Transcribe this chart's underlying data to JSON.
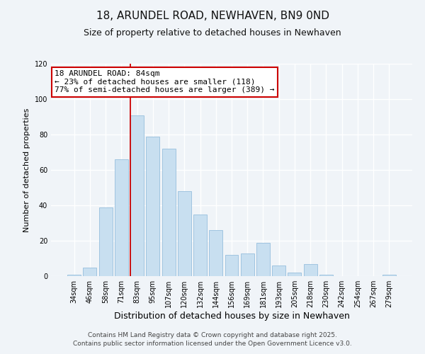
{
  "title": "18, ARUNDEL ROAD, NEWHAVEN, BN9 0ND",
  "subtitle": "Size of property relative to detached houses in Newhaven",
  "xlabel": "Distribution of detached houses by size in Newhaven",
  "ylabel": "Number of detached properties",
  "bar_color": "#c8dff0",
  "bar_edge_color": "#a0c4e0",
  "background_color": "#f0f4f8",
  "grid_color": "#ffffff",
  "categories": [
    "34sqm",
    "46sqm",
    "58sqm",
    "71sqm",
    "83sqm",
    "95sqm",
    "107sqm",
    "120sqm",
    "132sqm",
    "144sqm",
    "156sqm",
    "169sqm",
    "181sqm",
    "193sqm",
    "205sqm",
    "218sqm",
    "230sqm",
    "242sqm",
    "254sqm",
    "267sqm",
    "279sqm"
  ],
  "values": [
    1,
    5,
    39,
    66,
    91,
    79,
    72,
    48,
    35,
    26,
    12,
    13,
    19,
    6,
    2,
    7,
    1,
    0,
    0,
    0,
    1
  ],
  "ylim": [
    0,
    120
  ],
  "yticks": [
    0,
    20,
    40,
    60,
    80,
    100,
    120
  ],
  "property_line_index": 4,
  "property_line_color": "#cc0000",
  "annotation_line1": "18 ARUNDEL ROAD: 84sqm",
  "annotation_line2": "← 23% of detached houses are smaller (118)",
  "annotation_line3": "77% of semi-detached houses are larger (389) →",
  "annotation_box_color": "#ffffff",
  "annotation_box_edge": "#cc0000",
  "footer_line1": "Contains HM Land Registry data © Crown copyright and database right 2025.",
  "footer_line2": "Contains public sector information licensed under the Open Government Licence v3.0.",
  "title_fontsize": 11,
  "subtitle_fontsize": 9,
  "xlabel_fontsize": 9,
  "ylabel_fontsize": 8,
  "tick_fontsize": 7,
  "annotation_fontsize": 8,
  "footer_fontsize": 6.5
}
